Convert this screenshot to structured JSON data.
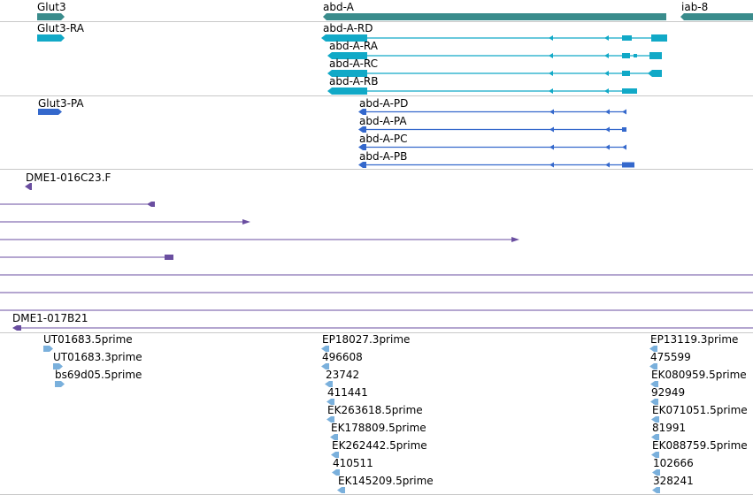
{
  "colors": {
    "gene": "#3a8c8c",
    "mrna": "#11a9c7",
    "protein": "#3468cc",
    "clone": "#6a4ea0",
    "est": "#7ab0dc",
    "separator": "#c8c8c8"
  },
  "genes": {
    "glut3": "Glut3",
    "abd_a": "abd-A",
    "iab_8": "iab-8"
  },
  "transcripts": {
    "glut3_ra": "Glut3-RA",
    "abd_a_rd": "abd-A-RD",
    "abd_a_ra": "abd-A-RA",
    "abd_a_rc": "abd-A-RC",
    "abd_a_rb": "abd-A-RB"
  },
  "proteins": {
    "glut3_pa": "Glut3-PA",
    "abd_a_pd": "abd-A-PD",
    "abd_a_pa": "abd-A-PA",
    "abd_a_pc": "abd-A-PC",
    "abd_a_pb": "abd-A-PB"
  },
  "clones": {
    "dme1_016c23": "DME1-016C23.F",
    "dme1_017b21": "DME1-017B21"
  },
  "ests": {
    "col1": [
      "UT01683.5prime",
      "UT01683.3prime",
      "bs69d05.5prime"
    ],
    "col2": [
      "EP18027.3prime",
      "496608",
      "23742",
      "411441",
      "EK263618.5prime",
      "EK178809.5prime",
      "EK262442.5prime",
      "410511",
      "EK145209.5prime"
    ],
    "col3": [
      "EP13119.3prime",
      "475599",
      "EK080959.5prime",
      "92949",
      "EK071051.5prime",
      "81991",
      "EK088759.5prime",
      "102666",
      "328241"
    ]
  }
}
